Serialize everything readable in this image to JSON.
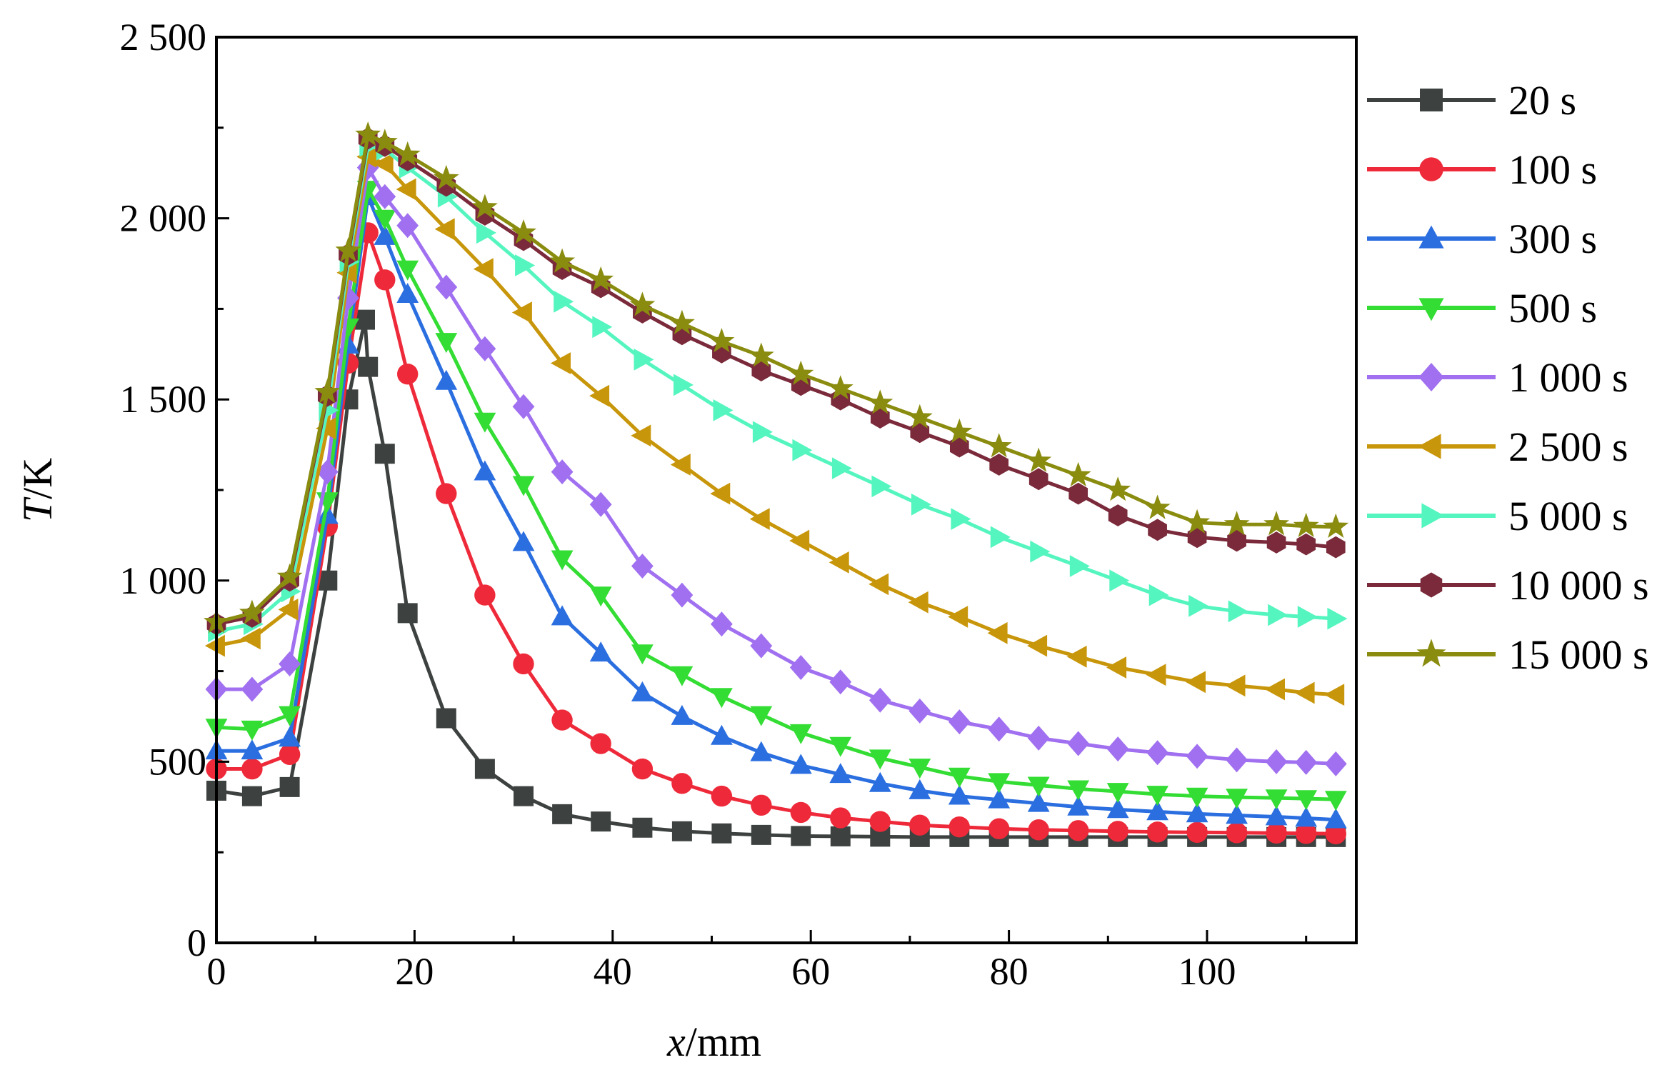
{
  "chart_data": {
    "type": "line",
    "title": "",
    "xlabel": {
      "var": "x",
      "unit": "/mm"
    },
    "ylabel": {
      "var": "T",
      "unit": "/K"
    },
    "xlim": [
      0,
      115
    ],
    "ylim": [
      0,
      2500
    ],
    "x_ticks": [
      0,
      20,
      40,
      60,
      80,
      100
    ],
    "x_tick_labels": [
      "0",
      "20",
      "40",
      "60",
      "80",
      "100"
    ],
    "y_ticks": [
      0,
      500,
      1000,
      1500,
      2000,
      2500
    ],
    "y_tick_labels": [
      "0",
      "500",
      "1 000",
      "1 500",
      "2 000",
      "2 500"
    ],
    "grid": false,
    "legend_position": "right, outside plot",
    "series": [
      {
        "name": "20 s",
        "color": "#3d4240",
        "marker": "square",
        "x": [
          0,
          3.6,
          7.4,
          11.2,
          13.3,
          15,
          15.3,
          17,
          19.3,
          23.2,
          27.1,
          31,
          34.9,
          38.8,
          43,
          47,
          51,
          55,
          59,
          63,
          67,
          71,
          75,
          79,
          83,
          87,
          91,
          95,
          99,
          103,
          107,
          110,
          113
        ],
        "values": [
          420,
          405,
          430,
          1000,
          1500,
          1720,
          1590,
          1350,
          910,
          620,
          480,
          405,
          355,
          335,
          318,
          308,
          302,
          298,
          295,
          294,
          293,
          292,
          292,
          292,
          292,
          292,
          292,
          292,
          292,
          292,
          292,
          292,
          292
        ]
      },
      {
        "name": "100 s",
        "color": "#ee2a3a",
        "marker": "circle",
        "x": [
          0,
          3.6,
          7.4,
          11.2,
          13.3,
          15.3,
          17,
          19.3,
          23.2,
          27.1,
          31,
          34.9,
          38.8,
          43,
          47,
          51,
          55,
          59,
          63,
          67,
          71,
          75,
          79,
          83,
          87,
          91,
          95,
          99,
          103,
          107,
          110,
          113
        ],
        "values": [
          480,
          480,
          520,
          1150,
          1600,
          1960,
          1830,
          1570,
          1240,
          960,
          770,
          615,
          550,
          480,
          440,
          405,
          380,
          360,
          345,
          335,
          325,
          320,
          315,
          312,
          310,
          308,
          306,
          305,
          304,
          303,
          302,
          301
        ]
      },
      {
        "name": "300 s",
        "color": "#2a6ee0",
        "marker": "triangle-up",
        "x": [
          0,
          3.6,
          7.4,
          11.2,
          13.3,
          15.3,
          17,
          19.3,
          23.2,
          27.1,
          31,
          34.9,
          38.8,
          43,
          47,
          51,
          55,
          59,
          63,
          67,
          71,
          75,
          79,
          83,
          87,
          91,
          95,
          99,
          103,
          107,
          110,
          113
        ],
        "values": [
          530,
          530,
          565,
          1180,
          1650,
          2060,
          1950,
          1790,
          1550,
          1300,
          1105,
          900,
          800,
          690,
          625,
          570,
          525,
          490,
          465,
          440,
          420,
          405,
          395,
          385,
          375,
          368,
          362,
          356,
          352,
          348,
          344,
          340
        ]
      },
      {
        "name": "500 s",
        "color": "#33dd33",
        "marker": "triangle-down",
        "x": [
          0,
          3.6,
          7.4,
          11.2,
          13.3,
          15.3,
          17,
          19.3,
          23.2,
          27.1,
          31,
          34.9,
          38.8,
          43,
          47,
          51,
          55,
          59,
          63,
          67,
          71,
          75,
          79,
          83,
          87,
          91,
          95,
          99,
          103,
          107,
          110,
          113
        ],
        "values": [
          595,
          590,
          630,
          1220,
          1700,
          2080,
          2000,
          1860,
          1660,
          1440,
          1265,
          1060,
          960,
          800,
          740,
          680,
          630,
          580,
          545,
          510,
          485,
          460,
          445,
          435,
          425,
          418,
          410,
          405,
          402,
          400,
          398,
          396
        ]
      },
      {
        "name": "1 000 s",
        "color": "#a070f0",
        "marker": "diamond",
        "x": [
          0,
          3.6,
          7.4,
          11.2,
          13.3,
          15.3,
          17,
          19.3,
          23.2,
          27.1,
          31,
          34.9,
          38.8,
          43,
          47,
          51,
          55,
          59,
          63,
          67,
          71,
          75,
          79,
          83,
          87,
          91,
          95,
          99,
          103,
          107,
          110,
          113
        ],
        "values": [
          700,
          700,
          770,
          1300,
          1780,
          2140,
          2060,
          1980,
          1810,
          1640,
          1480,
          1300,
          1210,
          1040,
          960,
          880,
          820,
          760,
          720,
          670,
          640,
          610,
          590,
          565,
          550,
          535,
          525,
          515,
          505,
          500,
          498,
          494
        ]
      },
      {
        "name": "2 500 s",
        "color": "#c8960a",
        "marker": "triangle-left",
        "x": [
          0,
          3.6,
          7.4,
          11.2,
          13.3,
          15.3,
          17,
          19.3,
          23.2,
          27.1,
          31,
          34.9,
          38.8,
          43,
          47,
          51,
          55,
          59,
          63,
          67,
          71,
          75,
          79,
          83,
          87,
          91,
          95,
          99,
          103,
          107,
          110,
          113
        ],
        "values": [
          820,
          840,
          920,
          1420,
          1850,
          2170,
          2150,
          2080,
          1970,
          1860,
          1740,
          1600,
          1510,
          1400,
          1320,
          1240,
          1170,
          1110,
          1050,
          990,
          940,
          900,
          855,
          820,
          790,
          760,
          740,
          720,
          710,
          700,
          690,
          685
        ]
      },
      {
        "name": "5 000 s",
        "color": "#55f5c0",
        "marker": "triangle-right",
        "x": [
          0,
          3.6,
          7.4,
          11.2,
          13.3,
          15.3,
          17,
          19.3,
          23.2,
          27.1,
          31,
          34.9,
          38.8,
          43,
          47,
          51,
          55,
          59,
          63,
          67,
          71,
          75,
          79,
          83,
          87,
          91,
          95,
          99,
          103,
          107,
          110,
          113
        ],
        "values": [
          860,
          880,
          970,
          1470,
          1880,
          2200,
          2190,
          2140,
          2060,
          1960,
          1870,
          1770,
          1700,
          1610,
          1540,
          1470,
          1410,
          1360,
          1310,
          1260,
          1210,
          1170,
          1120,
          1080,
          1040,
          1000,
          960,
          930,
          915,
          905,
          900,
          895
        ]
      },
      {
        "name": "10 000 s",
        "color": "#7a2a3a",
        "marker": "hexagon",
        "x": [
          0,
          3.6,
          7.4,
          11.2,
          13.3,
          15.3,
          17,
          19.3,
          23.2,
          27.1,
          31,
          34.9,
          38.8,
          43,
          47,
          51,
          55,
          59,
          63,
          67,
          71,
          75,
          79,
          83,
          87,
          91,
          95,
          99,
          103,
          107,
          110,
          113
        ],
        "values": [
          880,
          900,
          1000,
          1510,
          1900,
          2220,
          2200,
          2160,
          2090,
          2010,
          1940,
          1860,
          1810,
          1740,
          1680,
          1630,
          1580,
          1540,
          1500,
          1450,
          1410,
          1370,
          1320,
          1280,
          1240,
          1180,
          1140,
          1120,
          1110,
          1105,
          1100,
          1092
        ]
      },
      {
        "name": "15 000 s",
        "color": "#8a8c10",
        "marker": "star",
        "x": [
          0,
          3.6,
          7.4,
          11.2,
          13.3,
          15.3,
          17,
          19.3,
          23.2,
          27.1,
          31,
          34.9,
          38.8,
          43,
          47,
          51,
          55,
          59,
          63,
          67,
          71,
          75,
          79,
          83,
          87,
          91,
          95,
          99,
          103,
          107,
          110,
          113
        ],
        "values": [
          885,
          910,
          1010,
          1520,
          1910,
          2230,
          2210,
          2175,
          2110,
          2030,
          1960,
          1880,
          1830,
          1760,
          1710,
          1660,
          1620,
          1570,
          1530,
          1490,
          1450,
          1410,
          1370,
          1330,
          1290,
          1250,
          1200,
          1160,
          1155,
          1155,
          1150,
          1148
        ]
      }
    ]
  }
}
